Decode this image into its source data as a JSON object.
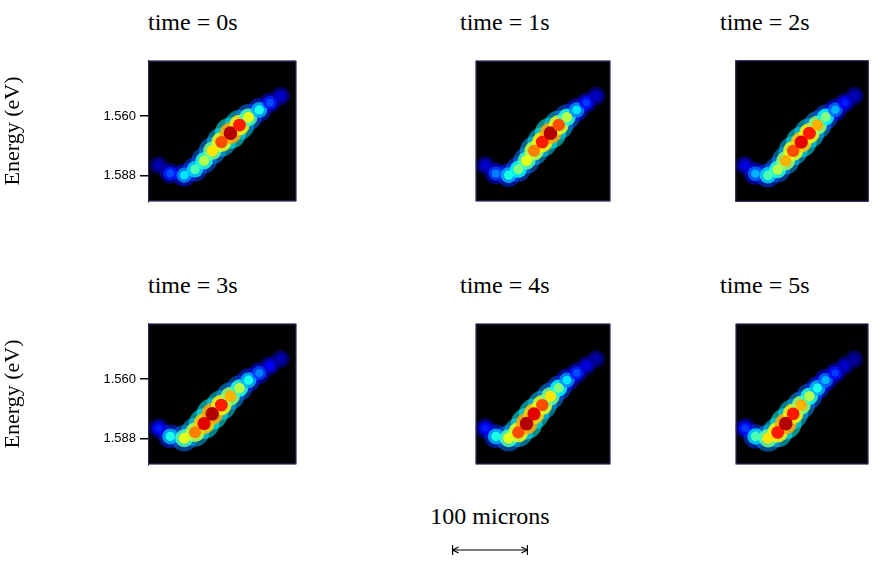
{
  "chart_data": [
    {
      "type": "scatter",
      "title": "time = 0s",
      "ylabel": "Energy (eV)",
      "xlim": [
        0,
        180
      ],
      "ylim": [
        1.6,
        1.534
      ],
      "yticks": [
        {
          "value": 1.56,
          "label": "1.560"
        },
        1.588
      ],
      "tick_labels": "y",
      "x": [
        13,
        27,
        44,
        57,
        68,
        78,
        89,
        100,
        111,
        122,
        135,
        148,
        161
      ],
      "values": [
        1.5831,
        1.5869,
        1.5877,
        1.585,
        1.5809,
        1.5763,
        1.5722,
        1.568,
        1.5642,
        1.5605,
        1.5571,
        1.5537,
        1.5506
      ],
      "intensity": [
        0.05,
        0.2,
        0.35,
        0.45,
        0.55,
        0.65,
        0.8,
        0.95,
        0.85,
        0.6,
        0.4,
        0.2,
        0.08
      ]
    },
    {
      "type": "scatter",
      "title": "time = 1s",
      "xlim": [
        0,
        180
      ],
      "ylim": [
        1.6,
        1.534
      ],
      "tick_labels": false,
      "x": [
        13,
        27,
        44,
        57,
        68,
        78,
        89,
        100,
        111,
        122,
        135,
        148,
        161
      ],
      "values": [
        1.5831,
        1.5869,
        1.5877,
        1.585,
        1.5809,
        1.5763,
        1.5722,
        1.568,
        1.5642,
        1.5605,
        1.5571,
        1.5537,
        1.5506
      ],
      "intensity": [
        0.08,
        0.25,
        0.4,
        0.5,
        0.6,
        0.75,
        0.85,
        0.95,
        0.8,
        0.55,
        0.35,
        0.18,
        0.07
      ]
    },
    {
      "type": "scatter",
      "title": "time = 2s",
      "xlim": [
        0,
        180
      ],
      "ylim": [
        1.6,
        1.534
      ],
      "tick_labels": false,
      "x": [
        13,
        27,
        44,
        57,
        68,
        78,
        89,
        100,
        111,
        122,
        135,
        148,
        161
      ],
      "values": [
        1.5831,
        1.5869,
        1.5877,
        1.585,
        1.5809,
        1.5763,
        1.5722,
        1.568,
        1.5642,
        1.5605,
        1.5571,
        1.5537,
        1.5506
      ],
      "intensity": [
        0.1,
        0.3,
        0.45,
        0.55,
        0.7,
        0.8,
        0.9,
        0.85,
        0.7,
        0.5,
        0.3,
        0.15,
        0.06
      ]
    },
    {
      "type": "scatter",
      "title": "time = 3s",
      "ylabel": "Energy (eV)",
      "xlim": [
        0,
        180
      ],
      "ylim": [
        1.6,
        1.534
      ],
      "yticks": [
        {
          "value": 1.56,
          "label": "1.560"
        },
        1.588
      ],
      "tick_labels": "y",
      "x": [
        13,
        27,
        44,
        57,
        68,
        78,
        89,
        100,
        111,
        122,
        135,
        148,
        161
      ],
      "values": [
        1.5831,
        1.5869,
        1.5877,
        1.585,
        1.5809,
        1.5763,
        1.5722,
        1.568,
        1.5642,
        1.5605,
        1.5571,
        1.5537,
        1.5506
      ],
      "intensity": [
        0.15,
        0.4,
        0.6,
        0.75,
        0.9,
        0.95,
        0.85,
        0.7,
        0.55,
        0.4,
        0.25,
        0.12,
        0.05
      ]
    },
    {
      "type": "scatter",
      "title": "time = 4s",
      "xlim": [
        0,
        180
      ],
      "ylim": [
        1.6,
        1.534
      ],
      "tick_labels": false,
      "x": [
        13,
        27,
        44,
        57,
        68,
        78,
        89,
        100,
        111,
        122,
        135,
        148,
        161
      ],
      "values": [
        1.5831,
        1.5869,
        1.5877,
        1.585,
        1.5809,
        1.5763,
        1.5722,
        1.568,
        1.5642,
        1.5605,
        1.5571,
        1.5537,
        1.5506
      ],
      "intensity": [
        0.15,
        0.4,
        0.6,
        0.8,
        0.95,
        0.9,
        0.8,
        0.65,
        0.5,
        0.35,
        0.2,
        0.1,
        0.04
      ]
    },
    {
      "type": "scatter",
      "title": "time = 5s",
      "xlim": [
        0,
        180
      ],
      "ylim": [
        1.6,
        1.534
      ],
      "tick_labels": false,
      "x": [
        13,
        27,
        44,
        57,
        68,
        78,
        89,
        100,
        111,
        122,
        135,
        148,
        161
      ],
      "values": [
        1.5831,
        1.5869,
        1.5877,
        1.585,
        1.5809,
        1.5763,
        1.5722,
        1.568,
        1.5642,
        1.5605,
        1.5571,
        1.5537,
        1.5506
      ],
      "intensity": [
        0.18,
        0.45,
        0.65,
        0.85,
        0.95,
        0.85,
        0.7,
        0.55,
        0.4,
        0.3,
        0.18,
        0.08,
        0.03
      ]
    }
  ],
  "scale_bar": {
    "label": "100 microns",
    "length": 100
  }
}
